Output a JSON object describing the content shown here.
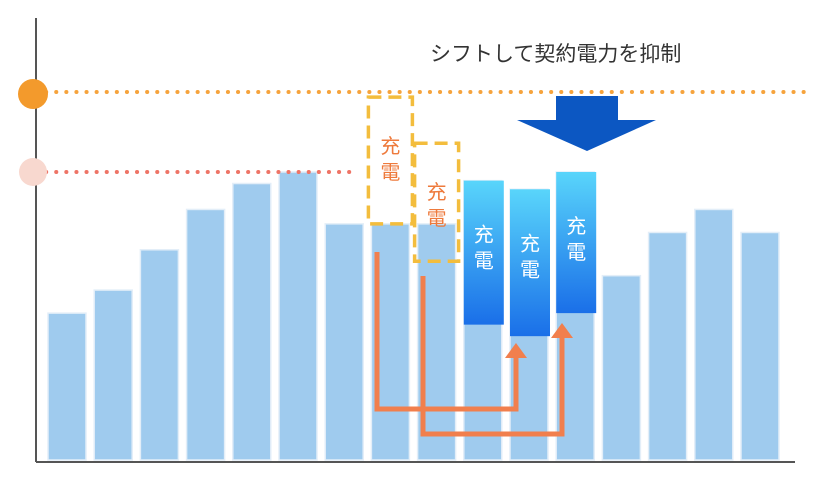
{
  "caption": "シフトして契約電力を抑制",
  "charge_label": "充電",
  "colors": {
    "bar": "#9fcbee",
    "bar_edge": "#e3eef8",
    "axis": "#555555",
    "contract_line": "#f6a33c",
    "reduced_line": "#ee7466",
    "contract_marker": "#f39a2c",
    "reduced_marker": "#f8d8cf",
    "dashed_box": "#f3bd3d",
    "dashed_text": "#ee7a3c",
    "battery_top": "#59d5fb",
    "battery_bottom": "#1a6fe8",
    "battery_text": "#ffffff",
    "shift_arrow": "#f17f4d",
    "down_arrow": "#0c57c2"
  },
  "icons": {
    "contract_marker": "orange-dot-marker",
    "reduced_marker": "light-dot-marker",
    "down_arrow": "down-arrow-icon"
  },
  "chart_data": {
    "type": "bar",
    "bar_levels": [
      0.51,
      0.59,
      0.73,
      0.87,
      0.96,
      1.0,
      0.82,
      0.82,
      0.82,
      0.97,
      0.94,
      1.0,
      0.64,
      0.79,
      0.87,
      0.79
    ],
    "peak_before_level": 1.26,
    "peak_after_level": 1.0,
    "removed_blocks": [
      {
        "bar": 7,
        "from_level": 0.82,
        "to_level": 1.26
      },
      {
        "bar": 8,
        "from_level": 0.69,
        "to_level": 1.1
      }
    ],
    "battery_blocks": [
      {
        "bar": 9,
        "from_level": 0.47,
        "to_level": 0.97
      },
      {
        "bar": 10,
        "from_level": 0.43,
        "to_level": 0.94
      },
      {
        "bar": 11,
        "from_level": 0.51,
        "to_level": 1.0
      }
    ]
  }
}
